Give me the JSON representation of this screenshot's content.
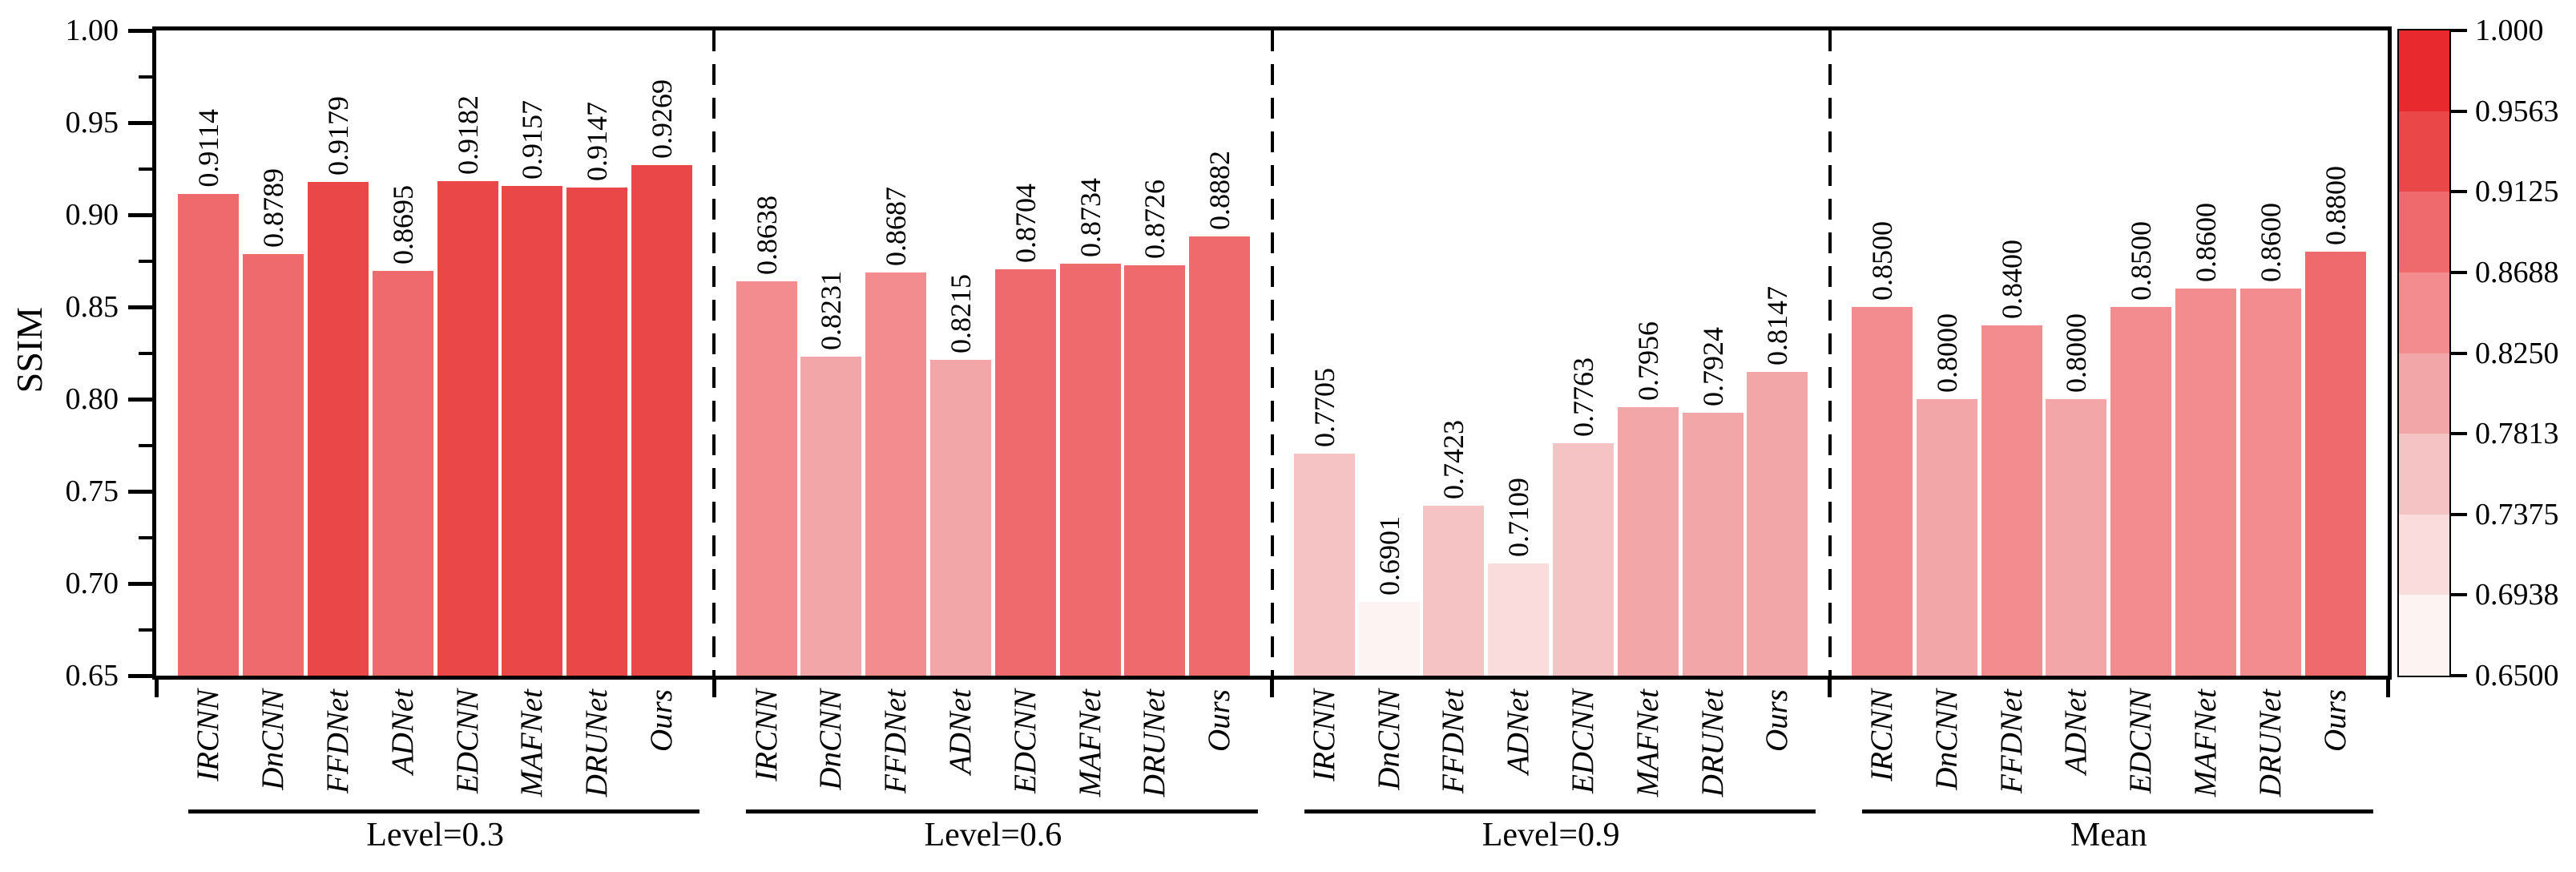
{
  "figure": {
    "background": "#ffffff",
    "axis_color": "#000000"
  },
  "chart_data": {
    "type": "bar",
    "title": "",
    "ylabel": "SSIM",
    "xlabel": "",
    "ylim": [
      0.65,
      1.0
    ],
    "grid": false,
    "y_tick_labels": [
      "1.00",
      "0.95",
      "0.90",
      "0.85",
      "0.80",
      "0.75",
      "0.70",
      "0.65"
    ],
    "y_minor_tick_step": 0.025,
    "categories": [
      "IRCNN",
      "DnCNN",
      "FFDNet",
      "ADNet",
      "EDCNN",
      "MAFNet",
      "DRUNet",
      "Ours"
    ],
    "groups": [
      {
        "label": "Level=0.3",
        "values": [
          0.9114,
          0.8789,
          0.9179,
          0.8695,
          0.9182,
          0.9157,
          0.9147,
          0.9269
        ]
      },
      {
        "label": "Level=0.6",
        "values": [
          0.8638,
          0.8231,
          0.8687,
          0.8215,
          0.8704,
          0.8734,
          0.8726,
          0.8882
        ]
      },
      {
        "label": "Level=0.9",
        "values": [
          0.7705,
          0.6901,
          0.7423,
          0.7109,
          0.7763,
          0.7956,
          0.7924,
          0.8147
        ]
      },
      {
        "label": "Mean",
        "values": [
          0.85,
          0.8,
          0.84,
          0.8,
          0.85,
          0.86,
          0.86,
          0.88
        ]
      }
    ],
    "value_label_decimals": 4,
    "colorbar": {
      "position": "right",
      "vmin": 0.65,
      "vmax": 1.0,
      "n_bins": 8,
      "tick_labels": [
        "1.000",
        "0.9563",
        "0.9125",
        "0.8688",
        "0.8250",
        "0.7813",
        "0.7375",
        "0.6938",
        "0.6500"
      ],
      "palette_low_to_high": [
        "#fdf3f2",
        "#fadcdc",
        "#f6c3c4",
        "#f3a6a8",
        "#f28c8e",
        "#ef6a6d",
        "#ea4749",
        "#e82a2f"
      ]
    }
  }
}
